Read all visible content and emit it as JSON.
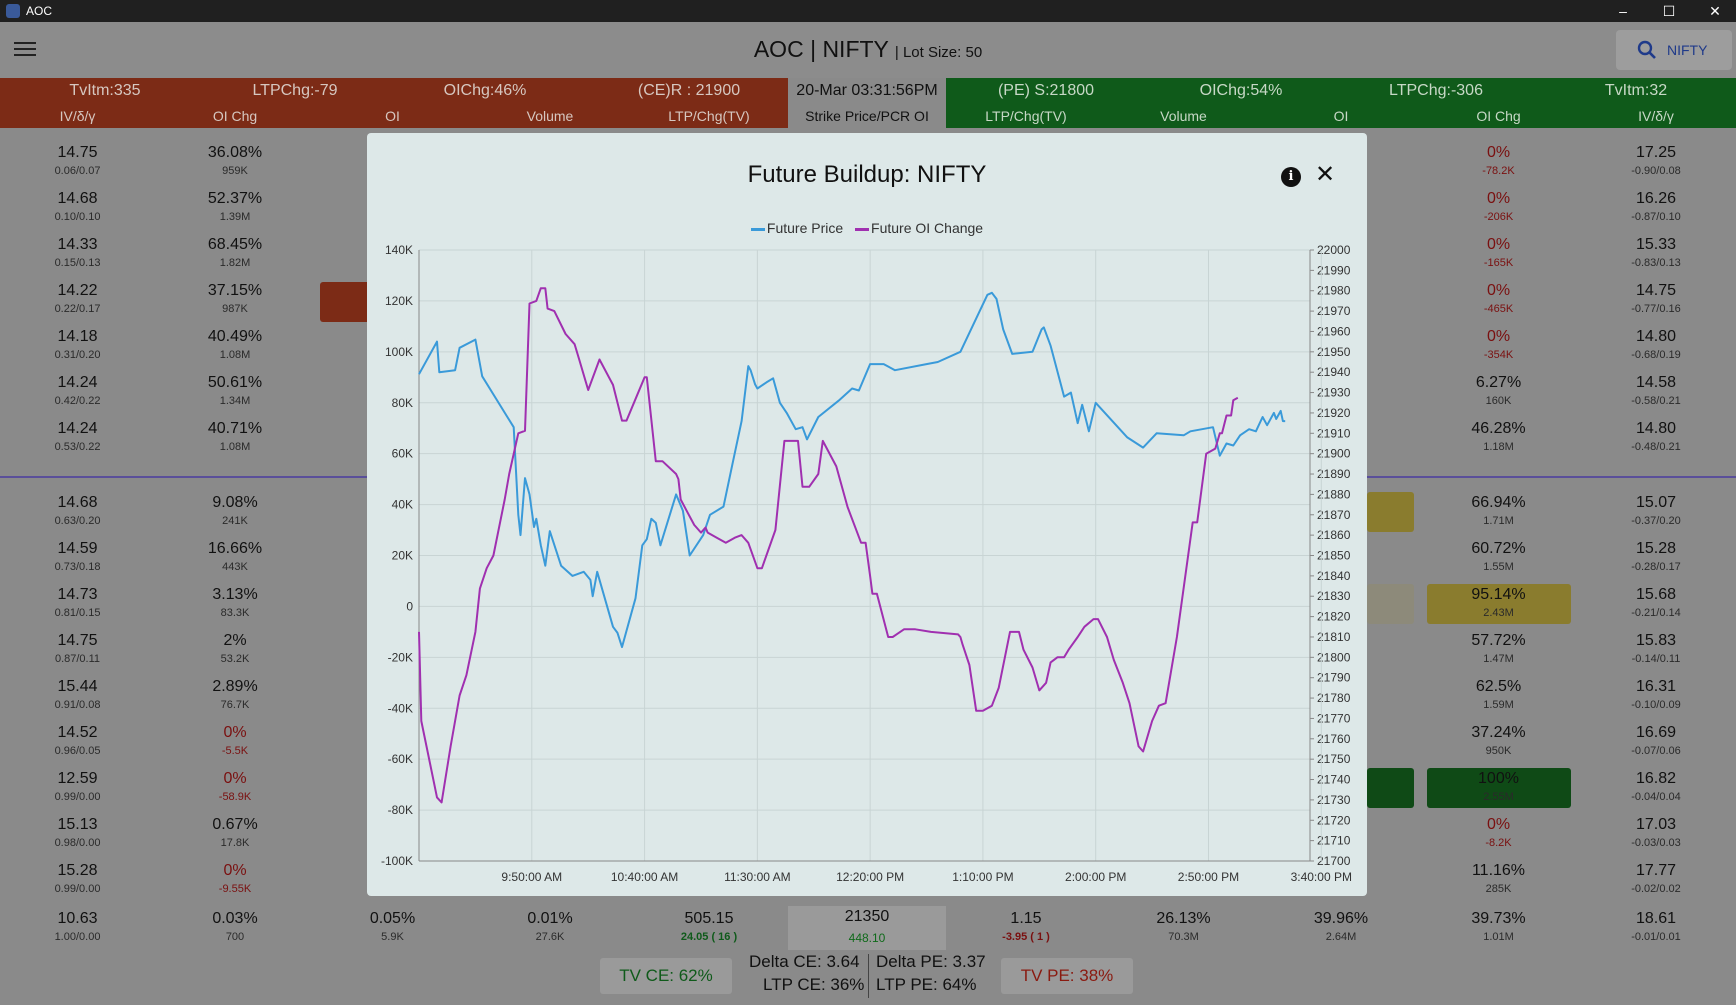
{
  "window": {
    "title": "AOC",
    "minimize": "–",
    "maximize": "☐",
    "close": "✕"
  },
  "appbar": {
    "title": "AOC | NIFTY",
    "lot_size": "Lot Size: 50",
    "search_label": "NIFTY"
  },
  "header_top": {
    "ce_tvitm": "TvItm:335",
    "ce_ltpchg": "LTPChg:-79",
    "ce_oichg": "OIChg:46%",
    "ce_resistance": "(CE)R : 21900",
    "datetime": "20-Mar 03:31:56PM",
    "pe_support": "(PE) S:21800",
    "pe_oichg": "OIChg:54%",
    "pe_ltpchg": "LTPChg:-306",
    "pe_tvitm": "TvItm:32"
  },
  "header_cols": {
    "ce_iv": "IV/δ/γ",
    "ce_oichg": "OI Chg",
    "ce_oi": "OI",
    "ce_volume": "Volume",
    "ce_ltp": "LTP/Chg(TV)",
    "strike": "Strike Price/PCR OI",
    "pe_ltp": "LTP/Chg(TV)",
    "pe_volume": "Volume",
    "pe_oi": "OI",
    "pe_oichg": "OI Chg",
    "pe_iv": "IV/δ/γ"
  },
  "rows_upper": [
    {
      "ce_iv": "14.75",
      "ce_greek": "0.06/0.07",
      "ce_oichg": "36.08%",
      "ce_oichg_abs": "959K",
      "pe_oichg": "0%",
      "pe_oichg_abs": "-78.2K",
      "pe_iv": "17.25",
      "pe_greek": "-0.90/0.08"
    },
    {
      "ce_iv": "14.68",
      "ce_greek": "0.10/0.10",
      "ce_oichg": "52.37%",
      "ce_oichg_abs": "1.39M",
      "pe_oichg": "0%",
      "pe_oichg_abs": "-206K",
      "pe_iv": "16.26",
      "pe_greek": "-0.87/0.10"
    },
    {
      "ce_iv": "14.33",
      "ce_greek": "0.15/0.13",
      "ce_oichg": "68.45%",
      "ce_oichg_abs": "1.82M",
      "pe_oichg": "0%",
      "pe_oichg_abs": "-165K",
      "pe_iv": "15.33",
      "pe_greek": "-0.83/0.13"
    },
    {
      "ce_iv": "14.22",
      "ce_greek": "0.22/0.17",
      "ce_oichg": "37.15%",
      "ce_oichg_abs": "987K",
      "pe_oichg": "0%",
      "pe_oichg_abs": "-465K",
      "pe_iv": "14.75",
      "pe_greek": "-0.77/0.16"
    },
    {
      "ce_iv": "14.18",
      "ce_greek": "0.31/0.20",
      "ce_oichg": "40.49%",
      "ce_oichg_abs": "1.08M",
      "pe_oichg": "0%",
      "pe_oichg_abs": "-354K",
      "pe_iv": "14.80",
      "pe_greek": "-0.68/0.19"
    },
    {
      "ce_iv": "14.24",
      "ce_greek": "0.42/0.22",
      "ce_oichg": "50.61%",
      "ce_oichg_abs": "1.34M",
      "pe_oichg": "6.27%",
      "pe_oichg_abs": "160K",
      "pe_iv": "14.58",
      "pe_greek": "-0.58/0.21"
    },
    {
      "ce_iv": "14.24",
      "ce_greek": "0.53/0.22",
      "ce_oichg": "40.71%",
      "ce_oichg_abs": "1.08M",
      "pe_oichg": "46.28%",
      "pe_oichg_abs": "1.18M",
      "pe_iv": "14.80",
      "pe_greek": "-0.48/0.21"
    }
  ],
  "rows_lower": [
    {
      "ce_iv": "14.68",
      "ce_greek": "0.63/0.20",
      "ce_oichg": "9.08%",
      "ce_oichg_abs": "241K",
      "pe_oichg": "66.94%",
      "pe_oichg_abs": "1.71M",
      "pe_iv": "15.07",
      "pe_greek": "-0.37/0.20"
    },
    {
      "ce_iv": "14.59",
      "ce_greek": "0.73/0.18",
      "ce_oichg": "16.66%",
      "ce_oichg_abs": "443K",
      "pe_oichg": "60.72%",
      "pe_oichg_abs": "1.55M",
      "pe_iv": "15.28",
      "pe_greek": "-0.28/0.17"
    },
    {
      "ce_iv": "14.73",
      "ce_greek": "0.81/0.15",
      "ce_oichg": "3.13%",
      "ce_oichg_abs": "83.3K",
      "pe_oichg": "95.14%",
      "pe_oichg_abs": "2.43M",
      "pe_iv": "15.68",
      "pe_greek": "-0.21/0.14"
    },
    {
      "ce_iv": "14.75",
      "ce_greek": "0.87/0.11",
      "ce_oichg": "2%",
      "ce_oichg_abs": "53.2K",
      "pe_oichg": "57.72%",
      "pe_oichg_abs": "1.47M",
      "pe_iv": "15.83",
      "pe_greek": "-0.14/0.11"
    },
    {
      "ce_iv": "15.44",
      "ce_greek": "0.91/0.08",
      "ce_oichg": "2.89%",
      "ce_oichg_abs": "76.7K",
      "pe_oichg": "62.5%",
      "pe_oichg_abs": "1.59M",
      "pe_iv": "16.31",
      "pe_greek": "-0.10/0.09"
    },
    {
      "ce_iv": "14.52",
      "ce_greek": "0.96/0.05",
      "ce_oichg": "0%",
      "ce_oichg_abs": "-5.5K",
      "pe_oichg": "37.24%",
      "pe_oichg_abs": "950K",
      "pe_iv": "16.69",
      "pe_greek": "-0.07/0.06"
    },
    {
      "ce_iv": "12.59",
      "ce_greek": "0.99/0.00",
      "ce_oichg": "0%",
      "ce_oichg_abs": "-58.9K",
      "pe_oichg": "100%",
      "pe_oichg_abs": "2.55M",
      "pe_iv": "16.82",
      "pe_greek": "-0.04/0.04"
    },
    {
      "ce_iv": "15.13",
      "ce_greek": "0.98/0.00",
      "ce_oichg": "0.67%",
      "ce_oichg_abs": "17.8K",
      "pe_oichg": "0%",
      "pe_oichg_abs": "-8.2K",
      "pe_iv": "17.03",
      "pe_greek": "-0.03/0.03"
    },
    {
      "ce_iv": "15.28",
      "ce_greek": "0.99/0.00",
      "ce_oichg": "0%",
      "ce_oichg_abs": "-9.55K",
      "pe_oichg": "11.16%",
      "pe_oichg_abs": "285K",
      "pe_iv": "17.77",
      "pe_greek": "-0.02/0.02"
    }
  ],
  "last_row": {
    "ce_iv": "10.63",
    "ce_greek": "1.00/0.00",
    "ce_oichg": "0.03%",
    "ce_oichg_abs": "700",
    "ce_oi": "0.05%",
    "ce_oi_abs": "5.9K",
    "ce_volume": "0.01%",
    "ce_volume_abs": "27.6K",
    "ce_ltp": "505.15",
    "ce_ltp_chg": "24.05 ( 16 )",
    "strike": "21350",
    "strike_pcr": "448.10",
    "pe_ltp": "1.15",
    "pe_ltp_chg": "-3.95 ( 1 )",
    "pe_volume": "26.13%",
    "pe_volume_abs": "70.3M",
    "pe_oi": "39.96%",
    "pe_oi_abs": "2.64M",
    "pe_oichg": "39.73%",
    "pe_oichg_abs": "1.01M",
    "pe_iv": "18.61",
    "pe_greek": "-0.01/0.01"
  },
  "bottom": {
    "tv_ce": "TV CE: 62%",
    "delta_ce": "Delta CE: 3.64",
    "ltp_ce": "LTP CE: 36%",
    "delta_pe": "Delta PE: 3.37",
    "ltp_pe": "LTP PE: 64%",
    "tv_pe": "TV PE: 38%"
  },
  "modal": {
    "title": "Future Buildup: NIFTY",
    "info_icon": "info-icon",
    "close_icon": "close-icon"
  },
  "colors": {
    "ce_header": "#7c2b16",
    "pe_header": "#0f5a1a",
    "future_price": "#3a9ad9",
    "future_oi_change": "#a030b0"
  },
  "chart_data": {
    "type": "line",
    "title": "Future Buildup: NIFTY",
    "x_ticks": [
      "9:50:00 AM",
      "10:40:00 AM",
      "11:30:00 AM",
      "12:20:00 PM",
      "1:10:00 PM",
      "2:00:00 PM",
      "2:50:00 PM",
      "3:40:00 PM"
    ],
    "x_range_minutes": [
      540,
      935
    ],
    "y_left_ticks": [
      "140K",
      "120K",
      "100K",
      "80K",
      "60K",
      "40K",
      "20K",
      "0",
      "-20K",
      "-40K",
      "-60K",
      "-80K",
      "-100K"
    ],
    "y_left_range": [
      -100000,
      140000
    ],
    "y_right_ticks": [
      "22000",
      "21990",
      "21980",
      "21970",
      "21960",
      "21950",
      "21940",
      "21930",
      "21920",
      "21910",
      "21900",
      "21890",
      "21880",
      "21870",
      "21860",
      "21850",
      "21840",
      "21830",
      "21820",
      "21810",
      "21800",
      "21790",
      "21780",
      "21770",
      "21760",
      "21750",
      "21740",
      "21730",
      "21720",
      "21710",
      "21700"
    ],
    "y_right_range": [
      21700,
      22000
    ],
    "grid": true,
    "legend": "top-center",
    "series": [
      {
        "name": "Future Price",
        "axis": "right",
        "color": "#3a9ad9",
        "points": [
          [
            540,
            21939
          ],
          [
            548,
            21955
          ],
          [
            549,
            21940
          ],
          [
            556,
            21941
          ],
          [
            558,
            21952
          ],
          [
            565,
            21956
          ],
          [
            568,
            21938
          ],
          [
            582,
            21913
          ],
          [
            584,
            21870
          ],
          [
            585,
            21860
          ],
          [
            587,
            21888
          ],
          [
            589,
            21880
          ],
          [
            591,
            21864
          ],
          [
            592,
            21868
          ],
          [
            594,
            21855
          ],
          [
            596,
            21845
          ],
          [
            598,
            21862
          ],
          [
            603,
            21845
          ],
          [
            608,
            21840
          ],
          [
            613,
            21842
          ],
          [
            616,
            21838
          ],
          [
            617,
            21830
          ],
          [
            619,
            21842
          ],
          [
            626,
            21815
          ],
          [
            628,
            21812
          ],
          [
            630,
            21805
          ],
          [
            636,
            21829
          ],
          [
            639,
            21855
          ],
          [
            641,
            21858
          ],
          [
            643,
            21868
          ],
          [
            645,
            21866
          ],
          [
            647,
            21855
          ],
          [
            654,
            21880
          ],
          [
            657,
            21872
          ],
          [
            660,
            21850
          ],
          [
            666,
            21860
          ],
          [
            669,
            21870
          ],
          [
            675,
            21874
          ],
          [
            679,
            21895
          ],
          [
            683,
            21916
          ],
          [
            686,
            21943
          ],
          [
            687,
            21941
          ],
          [
            689,
            21934
          ],
          [
            690,
            21932
          ],
          [
            694,
            21935
          ],
          [
            697,
            21937
          ],
          [
            700,
            21925
          ],
          [
            703,
            21920
          ],
          [
            707,
            21912
          ],
          [
            710,
            21913
          ],
          [
            712,
            21907
          ],
          [
            717,
            21918
          ],
          [
            726,
            21926
          ],
          [
            732,
            21932
          ],
          [
            735,
            21931
          ],
          [
            740,
            21944
          ],
          [
            746,
            21944
          ],
          [
            751,
            21941
          ],
          [
            765,
            21944
          ],
          [
            770,
            21945
          ],
          [
            780,
            21950
          ],
          [
            792,
            21978
          ],
          [
            794,
            21979
          ],
          [
            796,
            21976
          ],
          [
            799,
            21961
          ],
          [
            803,
            21949
          ],
          [
            812,
            21950
          ],
          [
            816,
            21961
          ],
          [
            817,
            21962
          ],
          [
            820,
            21953
          ],
          [
            826,
            21928
          ],
          [
            829,
            21930
          ],
          [
            832,
            21915
          ],
          [
            834,
            21924
          ],
          [
            837,
            21911
          ],
          [
            840,
            21925
          ],
          [
            854,
            21908
          ],
          [
            861,
            21903
          ],
          [
            867,
            21910
          ],
          [
            879,
            21909
          ],
          [
            882,
            21911
          ],
          [
            892,
            21913
          ],
          [
            895,
            21899
          ],
          [
            898,
            21905
          ],
          [
            901,
            21904
          ],
          [
            904,
            21909
          ],
          [
            908,
            21912
          ],
          [
            911,
            21911
          ],
          [
            914,
            21918
          ],
          [
            916,
            21914
          ],
          [
            919,
            21920
          ],
          [
            920,
            21917
          ],
          [
            922,
            21921
          ],
          [
            923,
            21916
          ],
          [
            924,
            21916
          ]
        ]
      },
      {
        "name": "Future OI Change",
        "axis": "left",
        "color": "#a030b0",
        "points": [
          [
            540,
            -10000
          ],
          [
            541,
            -45000
          ],
          [
            548,
            -75000
          ],
          [
            550,
            -77000
          ],
          [
            554,
            -55000
          ],
          [
            558,
            -35000
          ],
          [
            561,
            -27000
          ],
          [
            565,
            -10000
          ],
          [
            567,
            7000
          ],
          [
            570,
            15000
          ],
          [
            573,
            20000
          ],
          [
            578,
            42000
          ],
          [
            580,
            52000
          ],
          [
            584,
            68000
          ],
          [
            587,
            69000
          ],
          [
            589,
            119000
          ],
          [
            592,
            120000
          ],
          [
            594,
            125000
          ],
          [
            596,
            125000
          ],
          [
            597,
            117000
          ],
          [
            600,
            116000
          ],
          [
            605,
            107000
          ],
          [
            609,
            103000
          ],
          [
            611,
            97000
          ],
          [
            615,
            85000
          ],
          [
            620,
            97000
          ],
          [
            626,
            87000
          ],
          [
            630,
            73000
          ],
          [
            632,
            73000
          ],
          [
            640,
            90000
          ],
          [
            641,
            90000
          ],
          [
            645,
            57000
          ],
          [
            648,
            57000
          ],
          [
            654,
            52000
          ],
          [
            655,
            50000
          ],
          [
            656,
            42000
          ],
          [
            659,
            37000
          ],
          [
            662,
            32000
          ],
          [
            665,
            29000
          ],
          [
            667,
            31000
          ],
          [
            668,
            29000
          ],
          [
            672,
            27000
          ],
          [
            676,
            25000
          ],
          [
            680,
            27000
          ],
          [
            683,
            28000
          ],
          [
            686,
            25000
          ],
          [
            690,
            15000
          ],
          [
            692,
            15000
          ],
          [
            698,
            30000
          ],
          [
            702,
            65000
          ],
          [
            708,
            65000
          ],
          [
            710,
            47000
          ],
          [
            713,
            47000
          ],
          [
            717,
            52000
          ],
          [
            719,
            65000
          ],
          [
            725,
            55000
          ],
          [
            730,
            39000
          ],
          [
            736,
            25000
          ],
          [
            738,
            25000
          ],
          [
            740,
            12000
          ],
          [
            741,
            5000
          ],
          [
            743,
            5000
          ],
          [
            748,
            -12000
          ],
          [
            750,
            -12000
          ],
          [
            755,
            -9000
          ],
          [
            760,
            -9000
          ],
          [
            767,
            -10000
          ],
          [
            779,
            -11000
          ],
          [
            780,
            -12000
          ],
          [
            781,
            -15000
          ],
          [
            784,
            -23000
          ],
          [
            787,
            -41000
          ],
          [
            790,
            -41000
          ],
          [
            792,
            -40000
          ],
          [
            794,
            -39000
          ],
          [
            797,
            -32000
          ],
          [
            802,
            -10000
          ],
          [
            806,
            -10000
          ],
          [
            808,
            -17000
          ],
          [
            812,
            -24000
          ],
          [
            815,
            -33000
          ],
          [
            818,
            -30000
          ],
          [
            820,
            -22000
          ],
          [
            823,
            -20000
          ],
          [
            826,
            -20000
          ],
          [
            828,
            -17000
          ],
          [
            832,
            -12000
          ],
          [
            835,
            -8000
          ],
          [
            839,
            -5000
          ],
          [
            841,
            -5000
          ],
          [
            845,
            -12000
          ],
          [
            848,
            -21000
          ],
          [
            852,
            -30000
          ],
          [
            855,
            -38000
          ],
          [
            859,
            -55000
          ],
          [
            861,
            -57000
          ],
          [
            865,
            -45000
          ],
          [
            868,
            -39000
          ],
          [
            871,
            -38000
          ],
          [
            876,
            -12000
          ],
          [
            883,
            33000
          ],
          [
            885,
            33000
          ],
          [
            889,
            60000
          ],
          [
            893,
            62000
          ],
          [
            895,
            68000
          ],
          [
            896,
            68000
          ],
          [
            898,
            75000
          ],
          [
            900,
            75000
          ],
          [
            901,
            81000
          ],
          [
            903,
            82000
          ]
        ]
      }
    ]
  }
}
